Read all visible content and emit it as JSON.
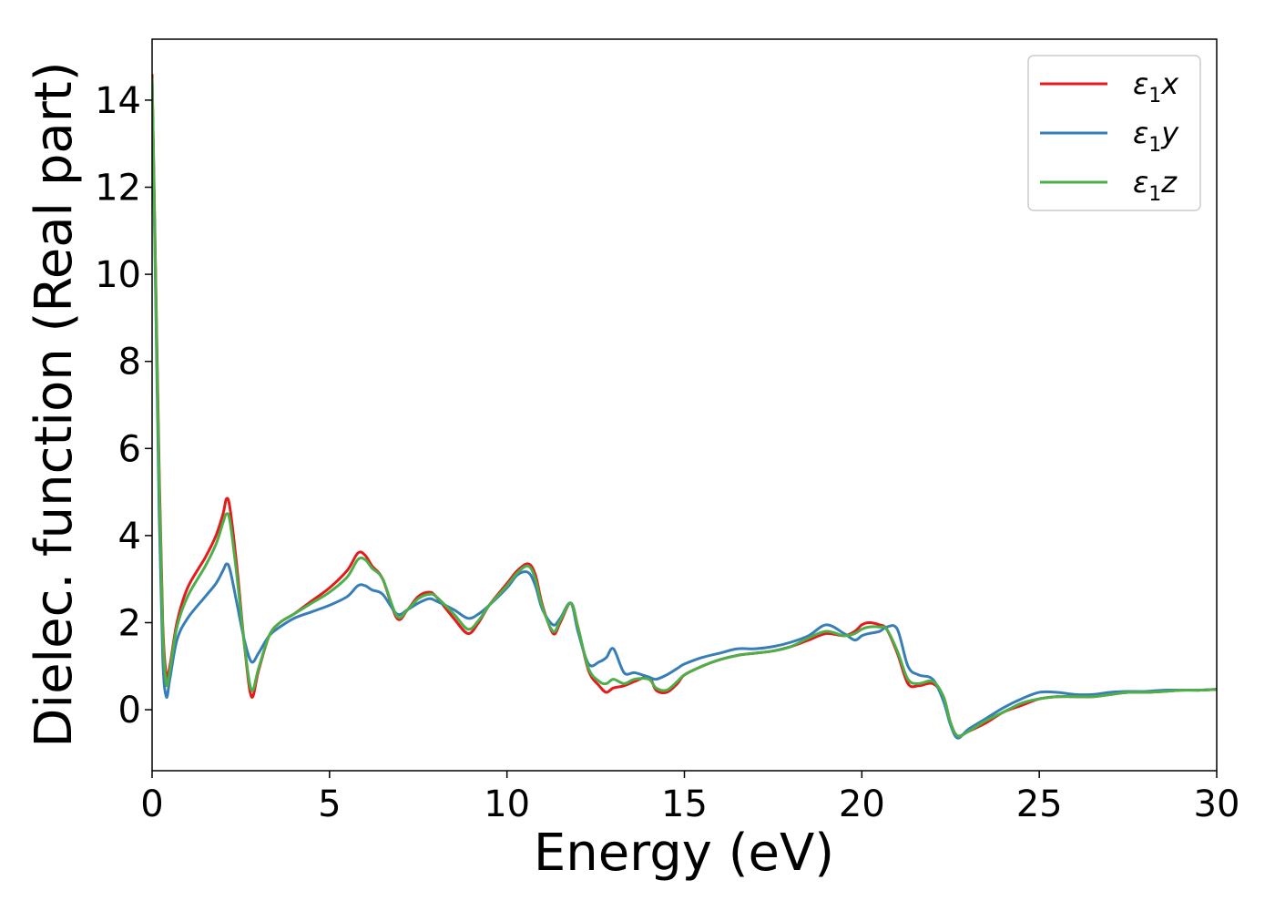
{
  "chart_data": {
    "type": "line",
    "xlabel": "Energy (eV)",
    "ylabel": "Dielec. function (Real part)",
    "xlim": [
      0,
      30
    ],
    "ylim": [
      -1.4,
      15.4
    ],
    "xticks": [
      0,
      5,
      10,
      15,
      20,
      25,
      30
    ],
    "yticks": [
      0,
      2,
      4,
      6,
      8,
      10,
      12,
      14
    ],
    "grid": false,
    "legend_position": "top-right",
    "series": [
      {
        "name": "ε1x",
        "legend": {
          "base": "ε",
          "sub": "1",
          "suffix": "x"
        },
        "color": "#e41a1c",
        "x": [
          0,
          0.1,
          0.2,
          0.3,
          0.4,
          0.5,
          0.7,
          1.0,
          1.5,
          1.8,
          2.0,
          2.1,
          2.2,
          2.4,
          2.6,
          2.8,
          3.0,
          3.3,
          3.6,
          4.0,
          4.5,
          5.0,
          5.5,
          5.8,
          6.0,
          6.2,
          6.5,
          6.9,
          7.2,
          7.5,
          7.8,
          8.0,
          8.5,
          8.9,
          9.2,
          9.5,
          10.0,
          10.3,
          10.6,
          10.8,
          11.0,
          11.3,
          11.5,
          11.8,
          12.0,
          12.3,
          12.6,
          12.8,
          13.0,
          13.3,
          13.6,
          14.0,
          14.2,
          14.5,
          14.8,
          15.0,
          15.5,
          16.0,
          16.5,
          17.0,
          17.5,
          18.0,
          18.5,
          19.0,
          19.5,
          19.8,
          20.0,
          20.2,
          20.5,
          20.7,
          21.0,
          21.3,
          21.6,
          22.0,
          22.3,
          22.5,
          22.7,
          23.0,
          23.5,
          24.0,
          24.5,
          25.0,
          25.5,
          26.0,
          26.5,
          27.0,
          27.5,
          28.0,
          28.5,
          29.0,
          29.5,
          30.0
        ],
        "y": [
          14.6,
          10.0,
          5.5,
          2.0,
          0.8,
          1.0,
          2.0,
          2.8,
          3.5,
          4.0,
          4.5,
          4.85,
          4.6,
          3.2,
          1.5,
          0.3,
          0.9,
          1.7,
          2.0,
          2.2,
          2.5,
          2.8,
          3.2,
          3.6,
          3.55,
          3.3,
          3.0,
          2.1,
          2.3,
          2.6,
          2.7,
          2.6,
          2.1,
          1.75,
          2.0,
          2.4,
          2.9,
          3.2,
          3.35,
          3.1,
          2.4,
          1.75,
          2.0,
          2.45,
          1.9,
          0.9,
          0.55,
          0.4,
          0.5,
          0.55,
          0.65,
          0.75,
          0.45,
          0.4,
          0.6,
          0.8,
          1.0,
          1.15,
          1.25,
          1.3,
          1.35,
          1.45,
          1.6,
          1.75,
          1.7,
          1.8,
          1.95,
          2.0,
          1.95,
          1.85,
          1.3,
          0.6,
          0.55,
          0.6,
          0.3,
          -0.3,
          -0.6,
          -0.5,
          -0.3,
          -0.05,
          0.1,
          0.25,
          0.3,
          0.3,
          0.3,
          0.35,
          0.4,
          0.4,
          0.42,
          0.45,
          0.45,
          0.47
        ]
      },
      {
        "name": "ε1y",
        "legend": {
          "base": "ε",
          "sub": "1",
          "suffix": "y"
        },
        "color": "#377eb8",
        "x": [
          0,
          0.1,
          0.2,
          0.3,
          0.4,
          0.5,
          0.7,
          1.0,
          1.5,
          1.8,
          2.0,
          2.1,
          2.2,
          2.4,
          2.6,
          2.8,
          3.0,
          3.3,
          3.6,
          4.0,
          4.5,
          5.0,
          5.5,
          5.8,
          6.0,
          6.2,
          6.5,
          6.9,
          7.2,
          7.5,
          7.8,
          8.0,
          8.5,
          8.9,
          9.2,
          9.5,
          10.0,
          10.3,
          10.6,
          10.8,
          11.0,
          11.3,
          11.5,
          11.8,
          12.0,
          12.3,
          12.6,
          12.8,
          13.0,
          13.3,
          13.6,
          14.0,
          14.2,
          14.5,
          14.8,
          15.0,
          15.5,
          16.0,
          16.5,
          17.0,
          17.5,
          18.0,
          18.5,
          19.0,
          19.5,
          19.8,
          20.0,
          20.2,
          20.5,
          20.7,
          21.0,
          21.3,
          21.6,
          22.0,
          22.3,
          22.5,
          22.7,
          23.0,
          23.5,
          24.0,
          24.5,
          25.0,
          25.5,
          26.0,
          26.5,
          27.0,
          27.5,
          28.0,
          28.5,
          29.0,
          29.5,
          30.0
        ],
        "y": [
          14.5,
          9.5,
          4.5,
          1.2,
          0.3,
          0.7,
          1.6,
          2.1,
          2.6,
          2.9,
          3.2,
          3.35,
          3.2,
          2.4,
          1.6,
          1.1,
          1.3,
          1.7,
          1.9,
          2.1,
          2.25,
          2.4,
          2.6,
          2.85,
          2.85,
          2.75,
          2.65,
          2.2,
          2.3,
          2.45,
          2.55,
          2.5,
          2.3,
          2.1,
          2.2,
          2.4,
          2.8,
          3.1,
          3.15,
          2.85,
          2.3,
          1.95,
          2.1,
          2.45,
          1.8,
          1.05,
          1.1,
          1.2,
          1.4,
          0.85,
          0.85,
          0.75,
          0.7,
          0.8,
          0.95,
          1.05,
          1.2,
          1.3,
          1.4,
          1.4,
          1.45,
          1.55,
          1.7,
          1.95,
          1.75,
          1.6,
          1.7,
          1.75,
          1.8,
          1.9,
          1.85,
          1.0,
          0.8,
          0.7,
          0.2,
          -0.35,
          -0.65,
          -0.45,
          -0.2,
          0.05,
          0.25,
          0.4,
          0.4,
          0.35,
          0.35,
          0.4,
          0.42,
          0.42,
          0.45,
          0.45,
          0.45,
          0.47
        ]
      },
      {
        "name": "ε1z",
        "legend": {
          "base": "ε",
          "sub": "1",
          "suffix": "z"
        },
        "color": "#4daf4a",
        "x": [
          0,
          0.1,
          0.2,
          0.3,
          0.4,
          0.5,
          0.7,
          1.0,
          1.5,
          1.8,
          2.0,
          2.1,
          2.2,
          2.4,
          2.6,
          2.8,
          3.0,
          3.3,
          3.6,
          4.0,
          4.5,
          5.0,
          5.5,
          5.8,
          6.0,
          6.2,
          6.5,
          6.9,
          7.2,
          7.5,
          7.8,
          8.0,
          8.5,
          8.9,
          9.2,
          9.5,
          10.0,
          10.3,
          10.6,
          10.8,
          11.0,
          11.3,
          11.5,
          11.8,
          12.0,
          12.3,
          12.6,
          12.8,
          13.0,
          13.3,
          13.6,
          14.0,
          14.2,
          14.5,
          14.8,
          15.0,
          15.5,
          16.0,
          16.5,
          17.0,
          17.5,
          18.0,
          18.5,
          19.0,
          19.5,
          19.8,
          20.0,
          20.2,
          20.5,
          20.7,
          21.0,
          21.3,
          21.6,
          22.0,
          22.3,
          22.5,
          22.7,
          23.0,
          23.5,
          24.0,
          24.5,
          25.0,
          25.5,
          26.0,
          26.5,
          27.0,
          27.5,
          28.0,
          28.5,
          29.0,
          29.5,
          30.0
        ],
        "y": [
          14.5,
          9.8,
          5.2,
          1.8,
          0.6,
          0.9,
          1.9,
          2.6,
          3.3,
          3.8,
          4.3,
          4.5,
          4.3,
          3.0,
          1.5,
          0.45,
          0.95,
          1.7,
          2.0,
          2.2,
          2.45,
          2.7,
          3.05,
          3.45,
          3.45,
          3.25,
          3.0,
          2.15,
          2.3,
          2.55,
          2.65,
          2.6,
          2.2,
          1.85,
          2.05,
          2.4,
          2.85,
          3.15,
          3.3,
          3.0,
          2.35,
          1.8,
          2.05,
          2.45,
          1.9,
          0.95,
          0.65,
          0.6,
          0.7,
          0.6,
          0.7,
          0.7,
          0.5,
          0.45,
          0.65,
          0.8,
          1.0,
          1.15,
          1.25,
          1.3,
          1.35,
          1.45,
          1.65,
          1.8,
          1.7,
          1.75,
          1.85,
          1.9,
          1.9,
          1.85,
          1.35,
          0.7,
          0.6,
          0.65,
          0.3,
          -0.3,
          -0.6,
          -0.5,
          -0.25,
          -0.05,
          0.15,
          0.25,
          0.3,
          0.3,
          0.3,
          0.35,
          0.4,
          0.4,
          0.42,
          0.45,
          0.45,
          0.47
        ]
      }
    ]
  }
}
